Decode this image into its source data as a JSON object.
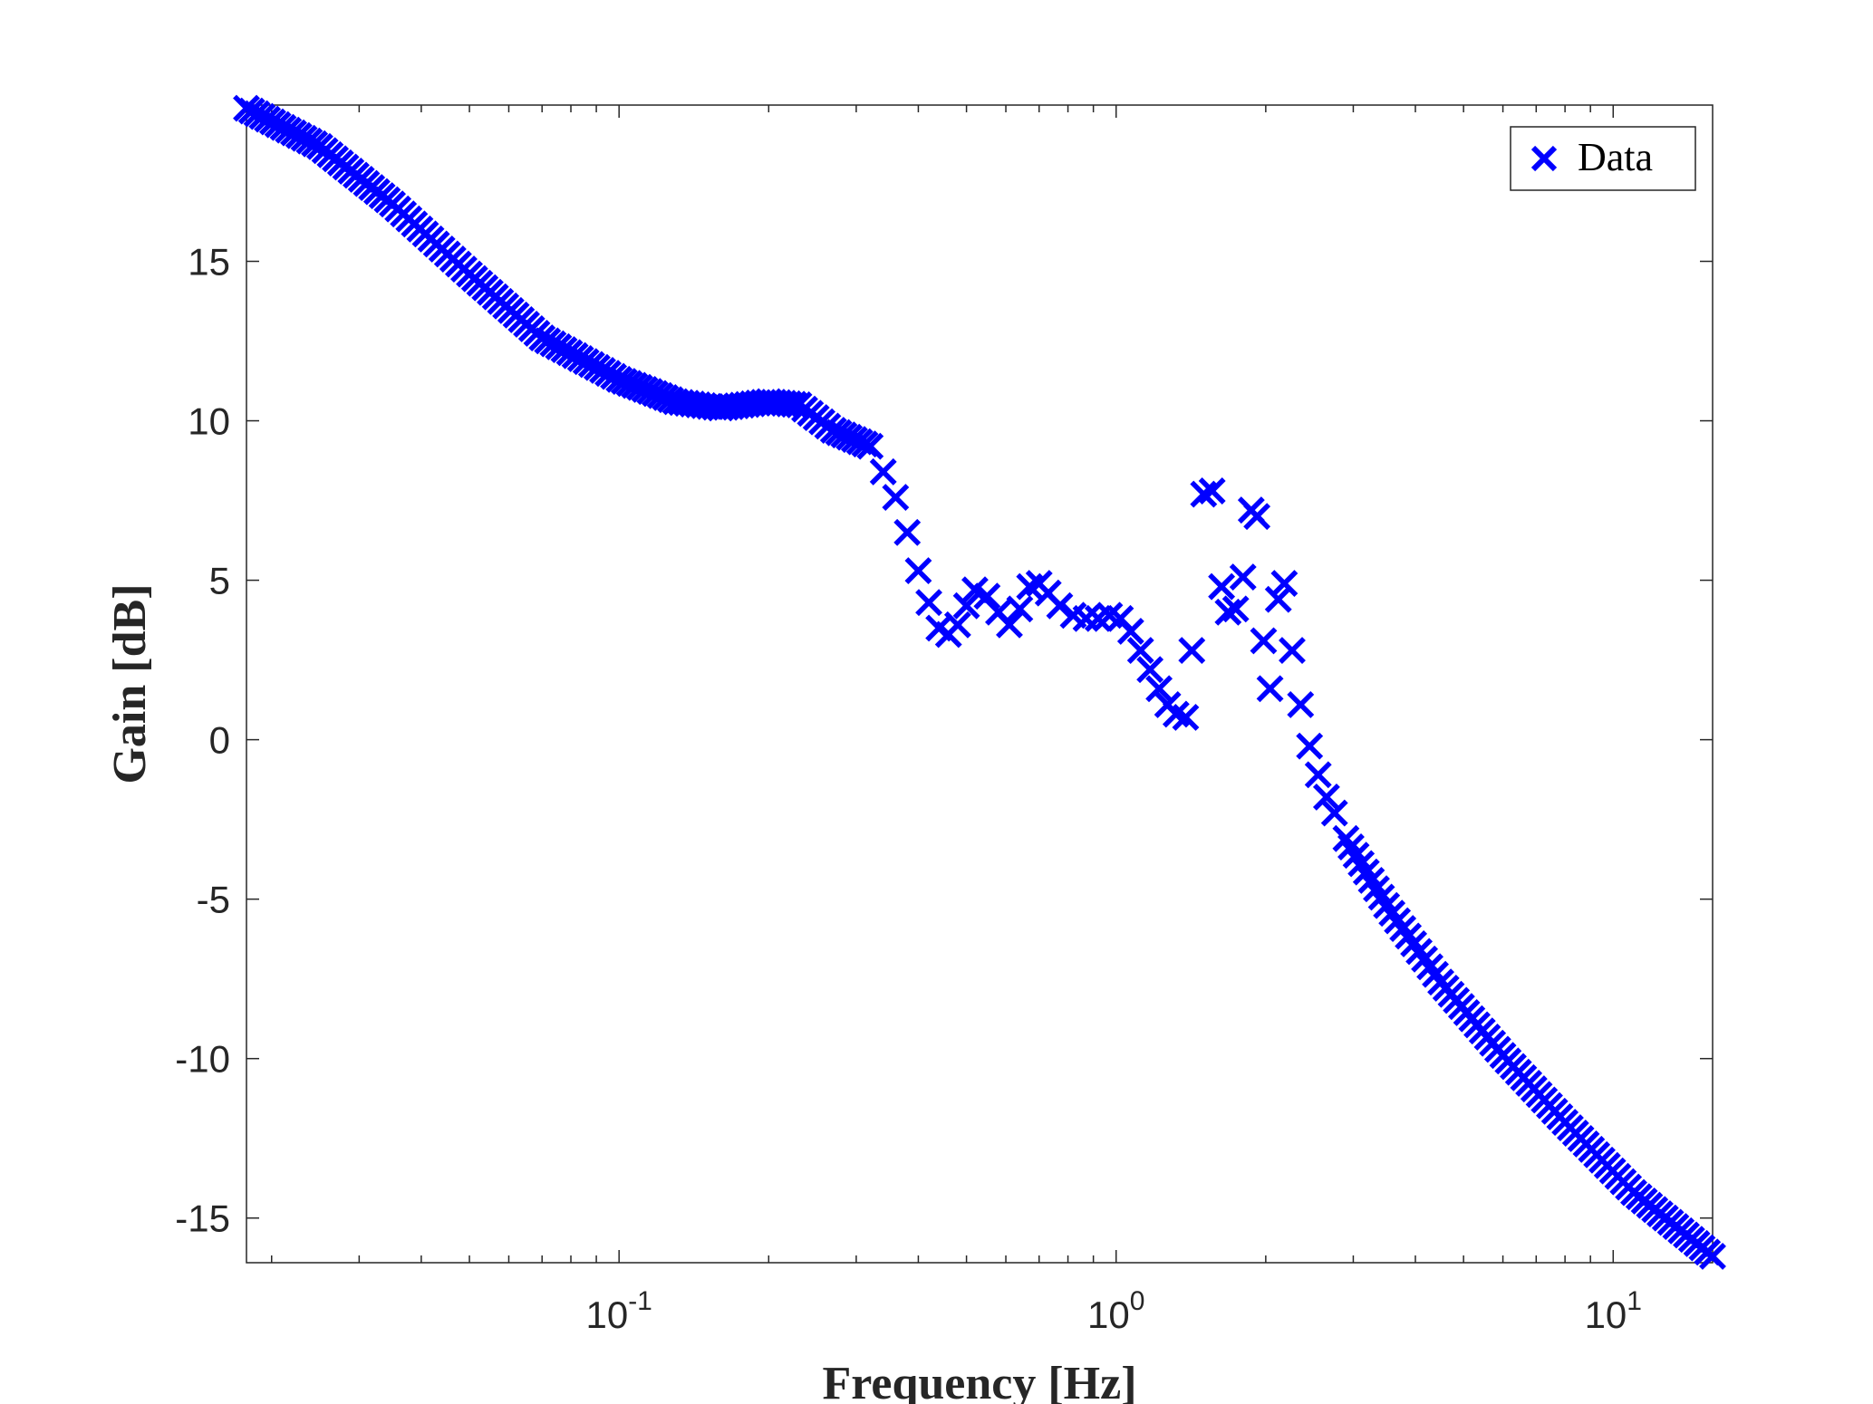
{
  "chart_data": {
    "type": "scatter",
    "xlabel": "Frequency [Hz]",
    "ylabel": "Gain [dB]",
    "x_scale": "log",
    "xlim": [
      0.0178,
      15.85
    ],
    "ylim": [
      -16.4,
      19.9
    ],
    "x_ticks": [
      {
        "value": 0.1,
        "base": "10",
        "exp": "-1"
      },
      {
        "value": 1,
        "base": "10",
        "exp": "0"
      },
      {
        "value": 10,
        "base": "10",
        "exp": "1"
      }
    ],
    "y_ticks": [
      {
        "value": 15,
        "label": "15"
      },
      {
        "value": 10,
        "label": "10"
      },
      {
        "value": 5,
        "label": "5"
      },
      {
        "value": 0,
        "label": "0"
      },
      {
        "value": -5,
        "label": "-5"
      },
      {
        "value": -10,
        "label": "-10"
      },
      {
        "value": -15,
        "label": "-15"
      }
    ],
    "grid": false,
    "legend": {
      "position": "top-right",
      "entries": [
        "Data"
      ]
    },
    "marker_color": "#0000ff",
    "series": [
      {
        "name": "Data",
        "marker": "x",
        "anchors": [
          [
            0.0178,
            19.8
          ],
          [
            0.025,
            18.6
          ],
          [
            0.035,
            16.8
          ],
          [
            0.05,
            14.6
          ],
          [
            0.07,
            12.6
          ],
          [
            0.1,
            11.3
          ],
          [
            0.13,
            10.6
          ],
          [
            0.16,
            10.4
          ],
          [
            0.2,
            10.6
          ],
          [
            0.23,
            10.5
          ],
          [
            0.27,
            9.7
          ],
          [
            0.32,
            9.2
          ]
        ],
        "irregular": [
          [
            0.34,
            8.4
          ],
          [
            0.36,
            7.6
          ],
          [
            0.38,
            6.5
          ],
          [
            0.4,
            5.3
          ],
          [
            0.42,
            4.3
          ],
          [
            0.44,
            3.5
          ],
          [
            0.46,
            3.3
          ],
          [
            0.48,
            3.6
          ],
          [
            0.5,
            4.2
          ],
          [
            0.52,
            4.7
          ],
          [
            0.55,
            4.5
          ],
          [
            0.58,
            4.0
          ],
          [
            0.61,
            3.6
          ],
          [
            0.64,
            4.1
          ],
          [
            0.67,
            4.8
          ],
          [
            0.7,
            4.9
          ],
          [
            0.73,
            4.6
          ],
          [
            0.77,
            4.2
          ],
          [
            0.82,
            3.9
          ],
          [
            0.87,
            3.8
          ],
          [
            0.92,
            3.8
          ],
          [
            0.97,
            3.9
          ],
          [
            1.02,
            3.8
          ],
          [
            1.07,
            3.4
          ],
          [
            1.12,
            2.8
          ],
          [
            1.17,
            2.2
          ],
          [
            1.22,
            1.6
          ],
          [
            1.27,
            1.1
          ],
          [
            1.32,
            0.8
          ],
          [
            1.38,
            0.7
          ],
          [
            1.42,
            2.8
          ],
          [
            1.5,
            7.7
          ],
          [
            1.56,
            7.8
          ],
          [
            1.63,
            4.8
          ],
          [
            1.68,
            4.0
          ],
          [
            1.74,
            4.1
          ],
          [
            1.8,
            5.1
          ],
          [
            1.87,
            7.2
          ],
          [
            1.92,
            7.0
          ],
          [
            1.98,
            3.1
          ],
          [
            2.04,
            1.6
          ],
          [
            2.12,
            4.4
          ],
          [
            2.18,
            4.9
          ],
          [
            2.26,
            2.8
          ],
          [
            2.35,
            1.1
          ],
          [
            2.45,
            -0.2
          ],
          [
            2.55,
            -1.1
          ],
          [
            2.65,
            -1.8
          ],
          [
            2.75,
            -2.3
          ]
        ],
        "tail": [
          [
            2.9,
            -3.1
          ],
          [
            3.5,
            -5.2
          ],
          [
            4.5,
            -7.6
          ],
          [
            6.0,
            -9.9
          ],
          [
            8.0,
            -12.0
          ],
          [
            11.0,
            -14.2
          ],
          [
            15.85,
            -16.2
          ]
        ]
      }
    ]
  }
}
